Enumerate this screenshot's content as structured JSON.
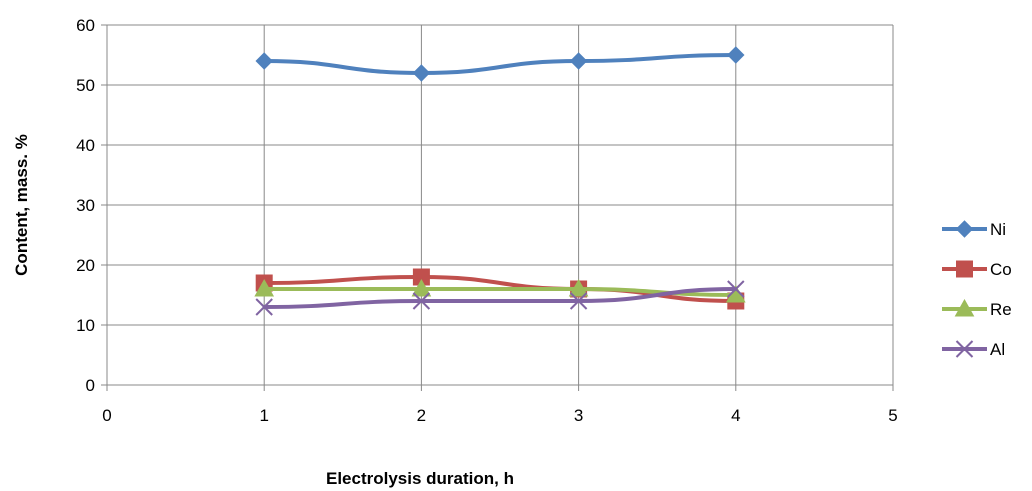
{
  "chart_data": {
    "type": "scatter",
    "title": "",
    "xlabel": "Electrolysis duration, h",
    "ylabel": "Content, mass. %",
    "xlim": [
      0,
      5
    ],
    "ylim": [
      0,
      60
    ],
    "xticks": [
      0,
      1,
      2,
      3,
      4,
      5
    ],
    "yticks": [
      0,
      10,
      20,
      30,
      40,
      50,
      60
    ],
    "grid": true,
    "legend_position": "right",
    "x": [
      1,
      2,
      3,
      4
    ],
    "series": [
      {
        "name": "Ni",
        "values": [
          54,
          52,
          54,
          55
        ],
        "color": "#4F81BD",
        "marker": "diamond"
      },
      {
        "name": "Co",
        "values": [
          17,
          18,
          16,
          14
        ],
        "color": "#C0504D",
        "marker": "square"
      },
      {
        "name": "Re",
        "values": [
          16,
          16,
          16,
          15
        ],
        "color": "#9BBB59",
        "marker": "triangle"
      },
      {
        "name": "Al",
        "values": [
          13,
          14,
          14,
          16
        ],
        "color": "#8064A2",
        "marker": "x"
      }
    ]
  }
}
